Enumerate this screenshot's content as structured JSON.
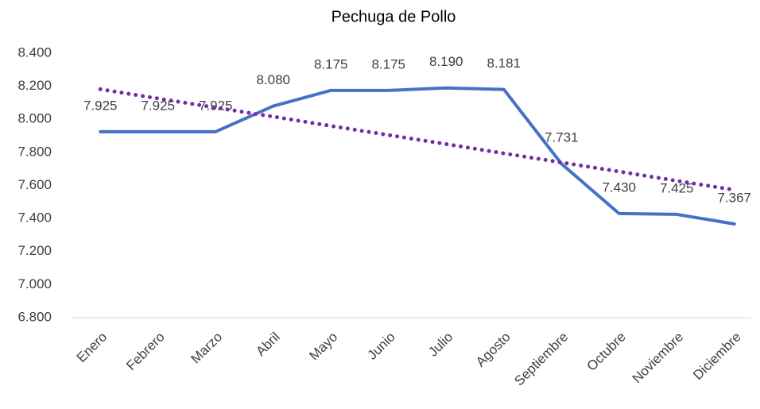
{
  "chart_data": {
    "type": "line",
    "title": "Pechuga de Pollo",
    "categories": [
      "Enero",
      "Febrero",
      "Marzo",
      "Abril",
      "Mayo",
      "Junio",
      "Julio",
      "Agosto",
      "Septiembre",
      "Octubre",
      "Noviembre",
      "Diciembre"
    ],
    "series": [
      {
        "color": "#4472c4",
        "values": [
          7925,
          7925,
          7925,
          8080,
          8175,
          8175,
          8190,
          8181,
          7731,
          7430,
          7425,
          7367
        ],
        "value_labels": [
          "7.925",
          "7.925",
          "7.925",
          "8.080",
          "8.175",
          "8.175",
          "8.190",
          "8.181",
          "7.731",
          "7.430",
          "7.425",
          "7.367"
        ]
      },
      {
        "color": "#7030a0",
        "dotted": true,
        "values": [
          8182,
          8126,
          8071,
          8016,
          7960,
          7905,
          7850,
          7794,
          7739,
          7684,
          7628,
          7573
        ]
      }
    ],
    "ylim": [
      6800,
      8400
    ],
    "yticks": [
      {
        "value": 6800,
        "label": "6.800"
      },
      {
        "value": 7000,
        "label": "7.000"
      },
      {
        "value": 7200,
        "label": "7.200"
      },
      {
        "value": 7400,
        "label": "7.400"
      },
      {
        "value": 7600,
        "label": "7.600"
      },
      {
        "value": 7800,
        "label": "7.800"
      },
      {
        "value": 8000,
        "label": "8.000"
      },
      {
        "value": 8200,
        "label": "8.200"
      },
      {
        "value": 8400,
        "label": "8.400"
      }
    ],
    "grid": false
  }
}
